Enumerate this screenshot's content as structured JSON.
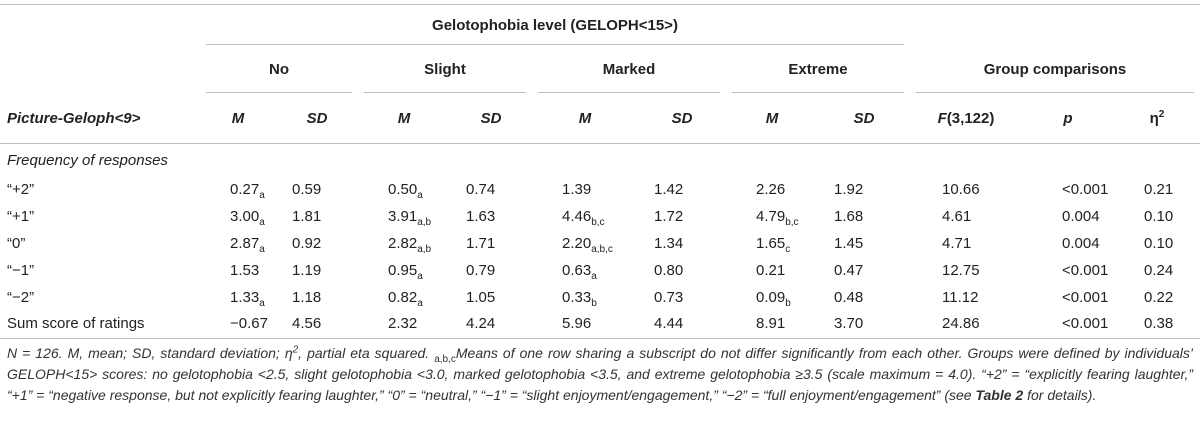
{
  "header": {
    "super_title": "Gelotophobia level (GELOPH<15>)",
    "groups": [
      "No",
      "Slight",
      "Marked",
      "Extreme",
      "Group comparisons"
    ],
    "stub_header": "Picture-Geloph<9>",
    "col_m": "M",
    "col_sd": "SD",
    "col_f_letter": "F",
    "col_f_df": "(3,122)",
    "col_p": "p",
    "col_eta": "η",
    "col_eta_sup": "2"
  },
  "section_label": "Frequency of responses",
  "rows": [
    {
      "label": "“+2”",
      "no_m": "0.27",
      "no_m_sub": "a",
      "no_sd": "0.59",
      "slight_m": "0.50",
      "slight_m_sub": "a",
      "slight_sd": "0.74",
      "marked_m": "1.39",
      "marked_m_sub": "",
      "marked_sd": "1.42",
      "extreme_m": "2.26",
      "extreme_m_sub": "",
      "extreme_sd": "1.92",
      "f": "10.66",
      "p": "<0.001",
      "eta": "0.21"
    },
    {
      "label": "“+1”",
      "no_m": "3.00",
      "no_m_sub": "a",
      "no_sd": "1.81",
      "slight_m": "3.91",
      "slight_m_sub": "a,b",
      "slight_sd": "1.63",
      "marked_m": "4.46",
      "marked_m_sub": "b,c",
      "marked_sd": "1.72",
      "extreme_m": "4.79",
      "extreme_m_sub": "b,c",
      "extreme_sd": "1.68",
      "f": "4.61",
      "p": "0.004",
      "eta": "0.10"
    },
    {
      "label": "“0”",
      "no_m": "2.87",
      "no_m_sub": "a",
      "no_sd": "0.92",
      "slight_m": "2.82",
      "slight_m_sub": "a,b",
      "slight_sd": "1.71",
      "marked_m": "2.20",
      "marked_m_sub": "a,b,c",
      "marked_sd": "1.34",
      "extreme_m": "1.65",
      "extreme_m_sub": "c",
      "extreme_sd": "1.45",
      "f": "4.71",
      "p": "0.004",
      "eta": "0.10"
    },
    {
      "label": "“−1”",
      "no_m": "1.53",
      "no_m_sub": "",
      "no_sd": "1.19",
      "slight_m": "0.95",
      "slight_m_sub": "a",
      "slight_sd": "0.79",
      "marked_m": "0.63",
      "marked_m_sub": "a",
      "marked_sd": "0.80",
      "extreme_m": "0.21",
      "extreme_m_sub": "",
      "extreme_sd": "0.47",
      "f": "12.75",
      "p": "<0.001",
      "eta": "0.24"
    },
    {
      "label": "“−2”",
      "no_m": "1.33",
      "no_m_sub": "a",
      "no_sd": "1.18",
      "slight_m": "0.82",
      "slight_m_sub": "a",
      "slight_sd": "1.05",
      "marked_m": "0.33",
      "marked_m_sub": "b",
      "marked_sd": "0.73",
      "extreme_m": "0.09",
      "extreme_m_sub": "b",
      "extreme_sd": "0.48",
      "f": "11.12",
      "p": "<0.001",
      "eta": "0.22"
    },
    {
      "label": "Sum score of ratings",
      "no_m": "−0.67",
      "no_m_sub": "",
      "no_sd": "4.56",
      "slight_m": "2.32",
      "slight_m_sub": "",
      "slight_sd": "4.24",
      "marked_m": "5.96",
      "marked_m_sub": "",
      "marked_sd": "4.44",
      "extreme_m": "8.91",
      "extreme_m_sub": "",
      "extreme_sd": "3.70",
      "f": "24.86",
      "p": "<0.001",
      "eta": "0.38"
    }
  ],
  "note": {
    "p1": "N = 126. M, mean; SD, standard deviation; η",
    "p1_sup": "2",
    "p2": ", partial eta squared. ",
    "p2_sub": "a,b,c",
    "p3": "Means of one row sharing a subscript do not differ significantly from each other. Groups were defined by individuals’ GELOPH<15> scores: no gelotophobia <2.5, slight gelotophobia <3.0, marked gelotophobia <3.5, and extreme gelotophobia ≥3.5 (scale maximum = 4.0). “+2” = “explicitly fearing laughter,” “+1” = “negative response, but not explicitly fearing laughter,” “0” = “neutral,” “−1” = “slight enjoyment/engagement,” “−2” = “full enjoyment/engagement” (see ",
    "p3_bold": "Table 2",
    "p4": " for details)."
  }
}
